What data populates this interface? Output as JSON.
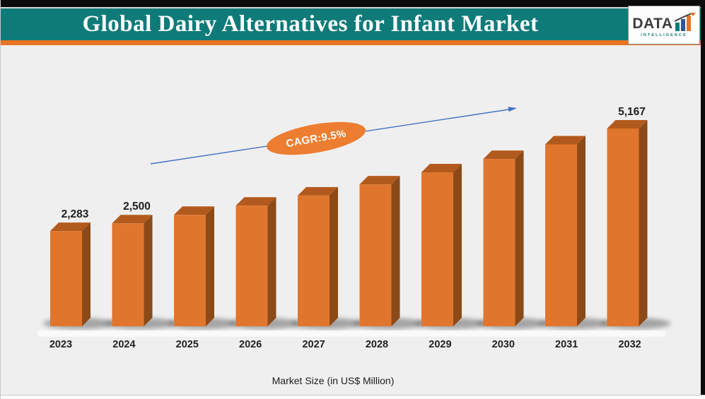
{
  "header": {
    "title": "Global Dairy Alternatives for Infant Market",
    "logo": {
      "brand": "DATA",
      "subtitle": "INTELLIGENCE"
    }
  },
  "annotations": {
    "cagr_label": "CAGR:9.5%"
  },
  "footer": {
    "caption": "Market Size (in US$ Million)"
  },
  "chart_data": {
    "type": "bar",
    "style": "3d-column",
    "title": "Global Dairy Alternatives for Infant Market",
    "categories": [
      "2023",
      "2024",
      "2025",
      "2026",
      "2027",
      "2028",
      "2029",
      "2030",
      "2031",
      "2032"
    ],
    "values": [
      2283,
      2500,
      2737,
      2997,
      3282,
      3594,
      3935,
      4309,
      4719,
      5167
    ],
    "visible_data_labels": [
      "2,283",
      "2,500",
      "",
      "",
      "",
      "",
      "",
      "",
      "",
      "5,167"
    ],
    "cagr_percent": 9.5,
    "cagr_label": "CAGR:9.5%",
    "xlabel": "Market Size (in US$ Million)",
    "ylabel": "",
    "ylim": [
      0,
      5500
    ],
    "grid": false,
    "legend": "none",
    "trend_arrow": {
      "from_x_category": "2024",
      "to_x_category": "2030",
      "direction": "up-right"
    }
  },
  "colors": {
    "header_teal": "#0F7B79",
    "accent_orange": "#E87424",
    "top_border_black": "#0b0b0b",
    "background": "#F0EFEF",
    "bar_front": "#E0762D",
    "bar_top": "#B25A1D",
    "bar_side": "#8C4A18",
    "trend_arrow_blue": "#4472C4",
    "cagr_badge_orange": "#ED7D31",
    "logo_bar_teal": "#0F7B79",
    "logo_bar_blue": "#2E5697",
    "logo_bar_orange": "#E87424",
    "text_dark": "#1f1f1f"
  }
}
